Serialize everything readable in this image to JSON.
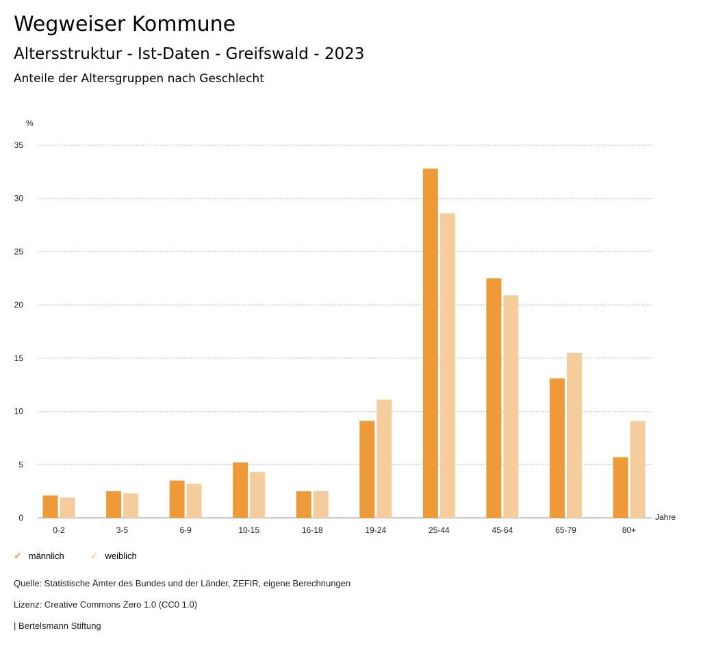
{
  "header": {
    "title": "Wegweiser Kommune",
    "subtitle": "Altersstruktur - Ist-Daten - Greifswald - 2023",
    "chart_title": "Anteile der Altersgruppen nach Geschlecht"
  },
  "chart_data": {
    "type": "bar",
    "title": "Anteile der Altersgruppen nach Geschlecht",
    "xlabel": "Jahre",
    "ylabel": "%",
    "ylim": [
      0,
      35
    ],
    "yticks": [
      0,
      5,
      10,
      15,
      20,
      25,
      30,
      35
    ],
    "grid": true,
    "legend_position": "bottom-left",
    "categories": [
      "0-2",
      "3-5",
      "6-9",
      "10-15",
      "16-18",
      "19-24",
      "25-44",
      "45-64",
      "65-79",
      "80+"
    ],
    "series": [
      {
        "name": "männlich",
        "color": "#ee9a38",
        "values": [
          2.1,
          2.5,
          3.5,
          5.2,
          2.5,
          9.1,
          32.8,
          22.5,
          13.1,
          5.7
        ]
      },
      {
        "name": "weiblich",
        "color": "#f5cd9c",
        "values": [
          1.9,
          2.3,
          3.2,
          4.3,
          2.5,
          11.1,
          28.6,
          20.9,
          15.5,
          9.1
        ]
      }
    ]
  },
  "footer": {
    "source": "Quelle: Statistische Ämter des Bundes und der Länder, ZEFIR, eigene Berechnungen",
    "license": "Lizenz: Creative Commons Zero 1.0 (CC0 1.0)",
    "brand": "| Bertelsmann Stiftung"
  }
}
